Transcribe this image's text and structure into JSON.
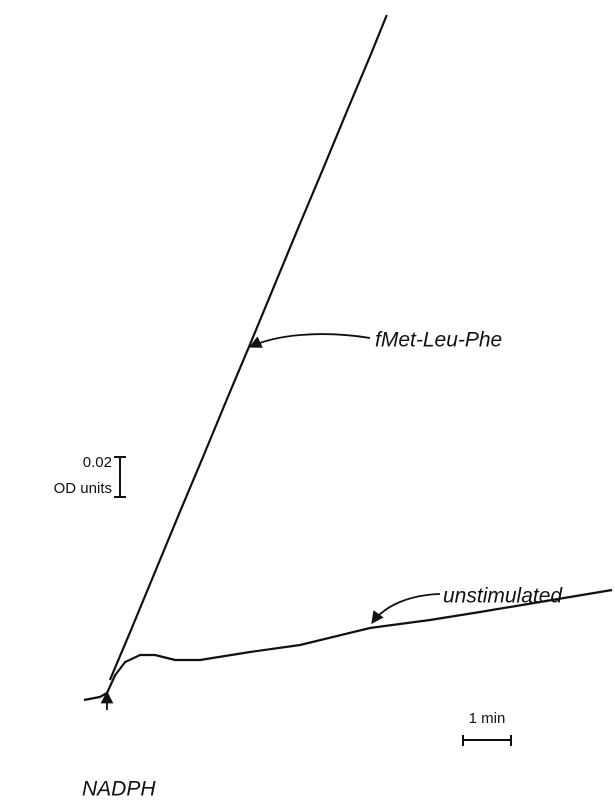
{
  "chart_data": {
    "type": "line",
    "xlim": [
      -0.5,
      10.55
    ],
    "ylim": [
      -0.05,
      0.34
    ],
    "series": [
      {
        "name": "fMet-Leu-Phe",
        "color": "#111111",
        "x": [
          0.06,
          0.5,
          1.0,
          1.5,
          2.0,
          2.5,
          3.0,
          3.5,
          4.0,
          4.5,
          5.0,
          5.5,
          5.83
        ],
        "values": [
          0.005,
          0.03,
          0.059,
          0.088,
          0.1165,
          0.1455,
          0.174,
          0.203,
          0.232,
          0.2605,
          0.2895,
          0.318,
          0.3375
        ]
      },
      {
        "name": "unstimulated",
        "color": "#111111",
        "x": [
          -0.48,
          -0.15,
          0,
          0.17,
          0.38,
          0.69,
          1.0,
          1.42,
          1.94,
          2.98,
          4.02,
          5.48,
          6.73,
          7.77,
          9.02,
          10.52
        ],
        "values": [
          -0.005,
          -0.0035,
          -0.0015,
          0.0075,
          0.014,
          0.0175,
          0.0175,
          0.015,
          0.015,
          0.019,
          0.0225,
          0.031,
          0.035,
          0.039,
          0.044,
          0.05
        ]
      }
    ],
    "annotations": [
      {
        "text": "NADPH",
        "x": 0
      }
    ],
    "scale_bars": {
      "y": {
        "value": 0.02,
        "unit": "OD units"
      },
      "x": {
        "value": 1,
        "label": "1 min"
      }
    }
  }
}
